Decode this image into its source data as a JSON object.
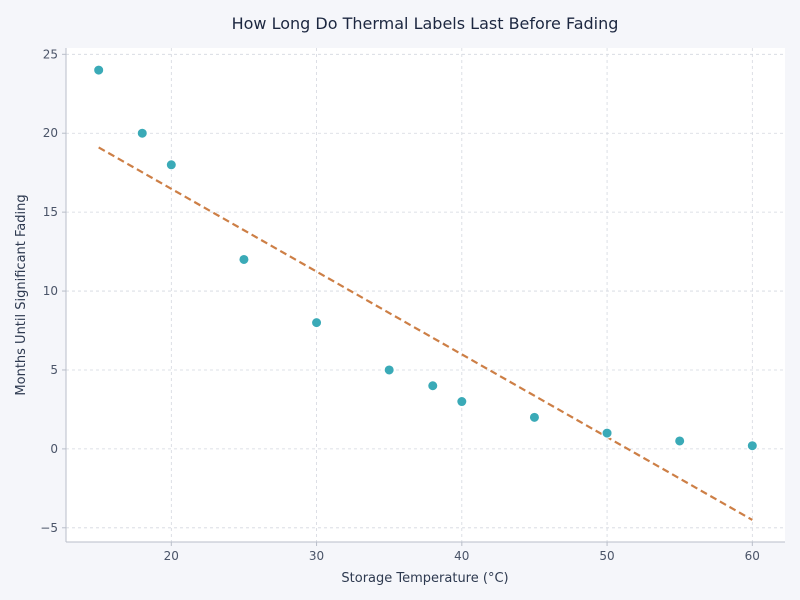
{
  "chart_data": {
    "type": "scatter",
    "title": "How Long Do Thermal Labels Last Before Fading",
    "xlabel": "Storage Temperature (°C)",
    "ylabel": "Months Until Significant Fading",
    "xlim": [
      12.75,
      62.25
    ],
    "ylim": [
      -5.9,
      25.4
    ],
    "x_ticks": [
      20,
      30,
      40,
      50,
      60
    ],
    "y_ticks": [
      -5,
      0,
      5,
      10,
      15,
      20,
      25
    ],
    "grid": true,
    "series": [
      {
        "kind": "points",
        "color": "#3aaab7",
        "x": [
          15,
          18,
          20,
          25,
          30,
          35,
          38,
          40,
          45,
          50,
          55,
          60
        ],
        "y": [
          24,
          20,
          18,
          12,
          8,
          5,
          4,
          3,
          2,
          1,
          0.5,
          0.2
        ]
      },
      {
        "kind": "trend-line",
        "color": "#cd7f46",
        "style": "dashed",
        "x": [
          15,
          60
        ],
        "y": [
          19.1,
          -4.5
        ]
      }
    ]
  },
  "colors": {
    "background": "#f5f6fa",
    "plot_background": "#ffffff",
    "points": "#3aaab7",
    "trend": "#cd7f46"
  }
}
